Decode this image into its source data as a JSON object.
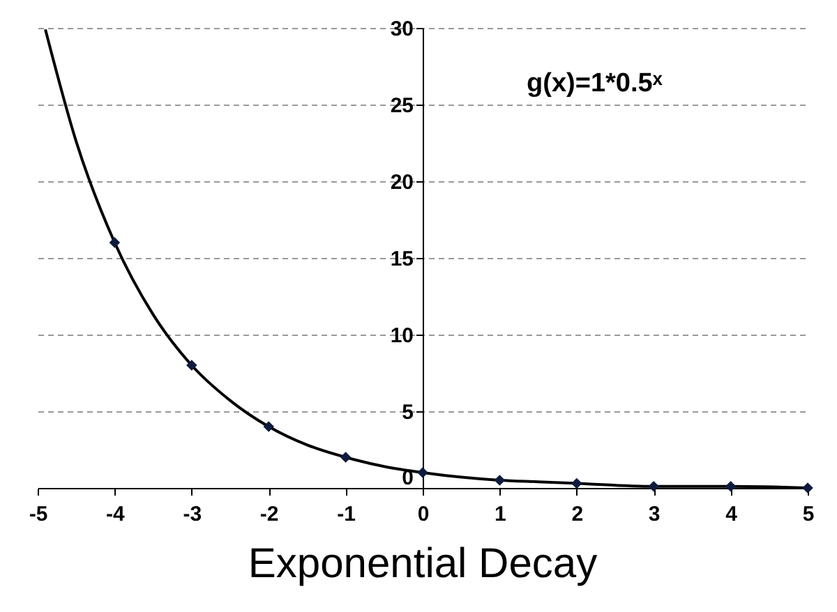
{
  "chart_data": {
    "type": "line",
    "title": "Exponential Decay",
    "annotations": [
      "g(x)=1*0.5ˣ"
    ],
    "xlim": [
      -5,
      5
    ],
    "xticks": [
      -5,
      -4,
      -3,
      -2,
      -1,
      0,
      1,
      2,
      3,
      4,
      5
    ],
    "ylim": [
      0,
      30
    ],
    "yticks": [
      0,
      5,
      10,
      15,
      20,
      25,
      30
    ],
    "grid": "y",
    "series": [
      {
        "type": "line",
        "color": "#000000",
        "marker": "none",
        "line_style": "solid",
        "x": [
          -4.9,
          -4.5,
          -4,
          -3.5,
          -3,
          -2.5,
          -2,
          -1.5,
          -1,
          -0.5,
          0,
          0.5,
          1,
          1.5,
          2,
          3,
          4,
          5
        ],
        "values": [
          29.9,
          22.6,
          16,
          11.3,
          8,
          5.7,
          4,
          2.8,
          2,
          1.4,
          1,
          0.7,
          0.5,
          0.4,
          0.3,
          0.1,
          0.1,
          0
        ]
      },
      {
        "type": "scatter",
        "color": "#0d1b3e",
        "marker": "diamond",
        "x": [
          -4,
          -3,
          -2,
          -1,
          0,
          1,
          2,
          3,
          4,
          5
        ],
        "values": [
          16,
          8,
          4,
          2,
          1,
          0.5,
          0.3,
          0.1,
          0.1,
          0
        ]
      }
    ]
  }
}
